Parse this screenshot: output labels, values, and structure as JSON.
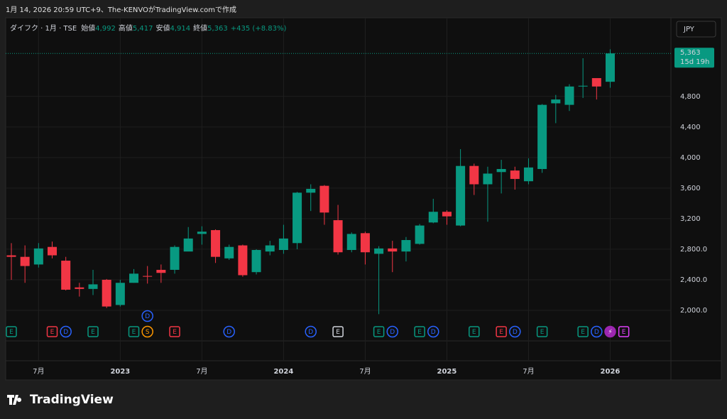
{
  "caption": "1月 14, 2026 20:59 UTC+9、The-KENVOがTradingView.comで作成",
  "brand": "TradingView",
  "chart_data": {
    "type": "candlestick",
    "symbol": "ダイフク · 1月 · TSE",
    "ohlc_header": [
      {
        "label": "始値",
        "value": "4,992"
      },
      {
        "label": "高値",
        "value": "5,417"
      },
      {
        "label": "安値",
        "value": "4,914"
      },
      {
        "label": "終値",
        "value": "5,363"
      }
    ],
    "change": "+435 (+8.83%)",
    "currency": "JPY",
    "last_price": {
      "value": 5363,
      "label": "5,363",
      "countdown": "15d 19h"
    },
    "categories": [
      "2022-05",
      "2022-06",
      "2022-07",
      "2022-08",
      "2022-09",
      "2022-10",
      "2022-11",
      "2022-12",
      "2023-01",
      "2023-02",
      "2023-03",
      "2023-04",
      "2023-05",
      "2023-06",
      "2023-07",
      "2023-08",
      "2023-09",
      "2023-10",
      "2023-11",
      "2023-12",
      "2024-01",
      "2024-02",
      "2024-03",
      "2024-04",
      "2024-05",
      "2024-06",
      "2024-07",
      "2024-08",
      "2024-09",
      "2024-10",
      "2024-11",
      "2024-12",
      "2025-01",
      "2025-02",
      "2025-03",
      "2025-04",
      "2025-05",
      "2025-06",
      "2025-07",
      "2025-08",
      "2025-09",
      "2025-10",
      "2025-11",
      "2025-12",
      "2026-01"
    ],
    "open": [
      2720,
      2700,
      2600,
      2830,
      2650,
      2300,
      2280,
      2400,
      2070,
      2360,
      2450,
      2530,
      2530,
      2770,
      3000,
      3050,
      2680,
      2850,
      2500,
      2770,
      2790,
      2880,
      3540,
      3630,
      3180,
      2790,
      3010,
      2740,
      2810,
      2770,
      2870,
      3150,
      3290,
      3110,
      3890,
      3650,
      3810,
      3830,
      3690,
      3850,
      4710,
      4690,
      4930,
      5040,
      4992
    ],
    "high": [
      2880,
      2850,
      2880,
      2900,
      2700,
      2360,
      2530,
      2410,
      2400,
      2540,
      2580,
      2600,
      2850,
      3090,
      3100,
      3060,
      2860,
      2860,
      2800,
      2910,
      3120,
      3550,
      3650,
      3640,
      3380,
      3020,
      3030,
      2840,
      2910,
      2960,
      3130,
      3460,
      3310,
      4110,
      3920,
      3880,
      3970,
      3880,
      3990,
      4700,
      4820,
      4960,
      5300,
      5040,
      5417
    ],
    "low": [
      2400,
      2360,
      2560,
      2680,
      2260,
      2180,
      2200,
      2030,
      2050,
      2360,
      2350,
      2360,
      2480,
      2780,
      2860,
      2620,
      2660,
      2440,
      2470,
      2720,
      2740,
      2800,
      3300,
      3120,
      2730,
      2760,
      2600,
      1950,
      2500,
      2640,
      2860,
      3140,
      3120,
      3100,
      3510,
      3160,
      3530,
      3580,
      3650,
      3800,
      4450,
      4610,
      4780,
      4760,
      4914
    ],
    "close": [
      2700,
      2580,
      2810,
      2720,
      2270,
      2280,
      2340,
      2050,
      2360,
      2480,
      2440,
      2490,
      2830,
      2940,
      3030,
      2700,
      2830,
      2460,
      2790,
      2850,
      2940,
      3540,
      3590,
      3280,
      2760,
      3000,
      2760,
      2810,
      2770,
      2920,
      3110,
      3290,
      3230,
      3890,
      3650,
      3790,
      3850,
      3720,
      3870,
      4690,
      4760,
      4930,
      4940,
      4930,
      5363
    ],
    "up_color": "#089981",
    "down_color": "#f23645",
    "ylim": [
      1600,
      5830
    ],
    "yticks": [
      {
        "value": 2000,
        "label": "2,000.0"
      },
      {
        "value": 2400,
        "label": "2,400.0"
      },
      {
        "value": 2800,
        "label": "2,800.0"
      },
      {
        "value": 3200,
        "label": "3,200"
      },
      {
        "value": 3600,
        "label": "3,600"
      },
      {
        "value": 4000,
        "label": "4,000"
      },
      {
        "value": 4400,
        "label": "4,400"
      },
      {
        "value": 4800,
        "label": "4,800"
      }
    ],
    "xticks": [
      {
        "value": "2022-07",
        "label": "7月"
      },
      {
        "value": "2023-01",
        "label": "2023"
      },
      {
        "value": "2023-07",
        "label": "7月"
      },
      {
        "value": "2024-01",
        "label": "2024"
      },
      {
        "value": "2024-07",
        "label": "7月"
      },
      {
        "value": "2025-01",
        "label": "2025"
      },
      {
        "value": "2025-07",
        "label": "7月"
      },
      {
        "value": "2026-01",
        "label": "2026"
      }
    ],
    "grid": true,
    "events": [
      {
        "date": "2022-05",
        "label": "E",
        "color": "#089981"
      },
      {
        "date": "2022-08",
        "label": "E",
        "color": "#f23645"
      },
      {
        "date": "2022-09",
        "label": "D",
        "color": "#2962ff"
      },
      {
        "date": "2022-11",
        "label": "E",
        "color": "#089981"
      },
      {
        "date": "2023-02",
        "label": "E",
        "color": "#089981"
      },
      {
        "date": "2023-03",
        "label": "S",
        "color": "#ff9800"
      },
      {
        "date": "2023-03",
        "label": "D",
        "color": "#2962ff"
      },
      {
        "date": "2023-05",
        "label": "E",
        "color": "#f23645"
      },
      {
        "date": "2023-09",
        "label": "D",
        "color": "#2962ff"
      },
      {
        "date": "2024-03",
        "label": "D",
        "color": "#2962ff"
      },
      {
        "date": "2024-05",
        "label": "E",
        "color": "#d1d4dc"
      },
      {
        "date": "2024-08",
        "label": "E",
        "color": "#089981"
      },
      {
        "date": "2024-09",
        "label": "D",
        "color": "#2962ff"
      },
      {
        "date": "2024-11",
        "label": "E",
        "color": "#089981"
      },
      {
        "date": "2024-12",
        "label": "D",
        "color": "#2962ff"
      },
      {
        "date": "2025-03",
        "label": "E",
        "color": "#089981"
      },
      {
        "date": "2025-05",
        "label": "E",
        "color": "#f23645"
      },
      {
        "date": "2025-06",
        "label": "D",
        "color": "#2962ff"
      },
      {
        "date": "2025-08",
        "label": "E",
        "color": "#089981"
      },
      {
        "date": "2025-11",
        "label": "E",
        "color": "#089981"
      },
      {
        "date": "2025-12",
        "label": "D",
        "color": "#2962ff"
      },
      {
        "date": "2026-01",
        "label": "⚡",
        "color": "#9c27b0"
      },
      {
        "date": "2026-02",
        "label": "E",
        "color": "#e040fb"
      }
    ]
  }
}
